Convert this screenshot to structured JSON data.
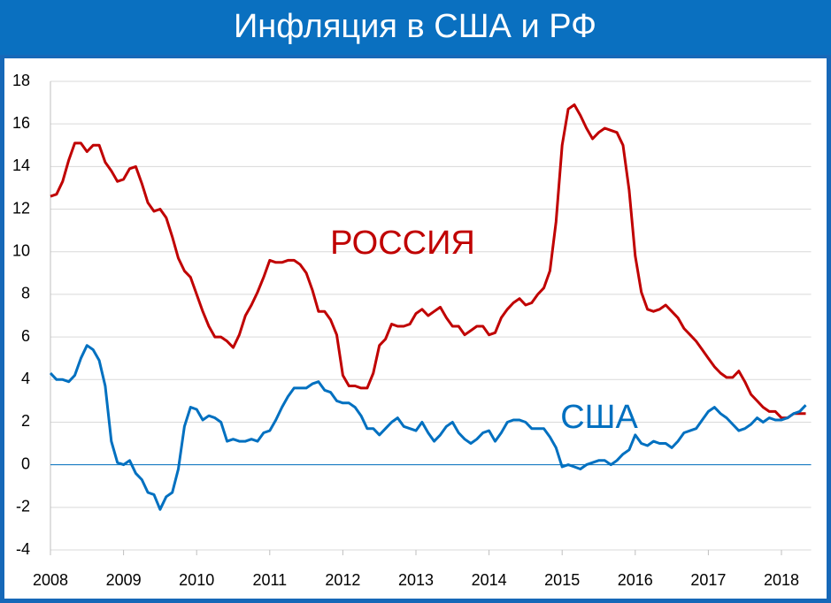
{
  "chart_data": {
    "type": "line",
    "title": "Инфляция в США и РФ",
    "categories": [
      "2008",
      null,
      null,
      null,
      null,
      null,
      null,
      null,
      null,
      null,
      null,
      null,
      "2009",
      null,
      null,
      null,
      null,
      null,
      null,
      null,
      null,
      null,
      null,
      null,
      "2010",
      null,
      null,
      null,
      null,
      null,
      null,
      null,
      null,
      null,
      null,
      null,
      "2011",
      null,
      null,
      null,
      null,
      null,
      null,
      null,
      null,
      null,
      null,
      null,
      "2012",
      null,
      null,
      null,
      null,
      null,
      null,
      null,
      null,
      null,
      null,
      null,
      "2013",
      null,
      null,
      null,
      null,
      null,
      null,
      null,
      null,
      null,
      null,
      null,
      "2014",
      null,
      null,
      null,
      null,
      null,
      null,
      null,
      null,
      null,
      null,
      null,
      "2015",
      null,
      null,
      null,
      null,
      null,
      null,
      null,
      null,
      null,
      null,
      null,
      "2016",
      null,
      null,
      null,
      null,
      null,
      null,
      null,
      null,
      null,
      null,
      null,
      "2017",
      null,
      null,
      null,
      null,
      null,
      null,
      null,
      null,
      null,
      null,
      null,
      "2018",
      null,
      null,
      null,
      null
    ],
    "series": [
      {
        "name": "РОССИЯ",
        "color": "#c00000",
        "values": [
          12.6,
          12.7,
          13.3,
          14.3,
          15.1,
          15.1,
          14.7,
          15.0,
          15.0,
          14.2,
          13.8,
          13.3,
          13.4,
          13.9,
          14.0,
          13.2,
          12.3,
          11.9,
          12.0,
          11.6,
          10.7,
          9.7,
          9.1,
          8.8,
          8.0,
          7.2,
          6.5,
          6.0,
          6.0,
          5.8,
          5.5,
          6.1,
          7.0,
          7.5,
          8.1,
          8.8,
          9.6,
          9.5,
          9.5,
          9.6,
          9.6,
          9.4,
          9.0,
          8.2,
          7.2,
          7.2,
          6.8,
          6.1,
          4.2,
          3.7,
          3.7,
          3.6,
          3.6,
          4.3,
          5.6,
          5.9,
          6.6,
          6.5,
          6.5,
          6.6,
          7.1,
          7.3,
          7.0,
          7.2,
          7.4,
          6.9,
          6.5,
          6.5,
          6.1,
          6.3,
          6.5,
          6.5,
          6.1,
          6.2,
          6.9,
          7.3,
          7.6,
          7.8,
          7.5,
          7.6,
          8.0,
          8.3,
          9.1,
          11.4,
          15.0,
          16.7,
          16.9,
          16.4,
          15.8,
          15.3,
          15.6,
          15.8,
          15.7,
          15.6,
          15.0,
          12.9,
          9.8,
          8.1,
          7.3,
          7.2,
          7.3,
          7.5,
          7.2,
          6.9,
          6.4,
          6.1,
          5.8,
          5.4,
          5.0,
          4.6,
          4.3,
          4.1,
          4.1,
          4.4,
          3.9,
          3.3,
          3.0,
          2.7,
          2.5,
          2.5,
          2.2,
          2.2,
          2.4,
          2.4,
          2.4
        ]
      },
      {
        "name": "США",
        "color": "#0070c0",
        "values": [
          4.3,
          4.0,
          4.0,
          3.9,
          4.2,
          5.0,
          5.6,
          5.4,
          4.9,
          3.7,
          1.1,
          0.1,
          0.0,
          0.2,
          -0.4,
          -0.7,
          -1.3,
          -1.4,
          -2.1,
          -1.5,
          -1.3,
          -0.2,
          1.8,
          2.7,
          2.6,
          2.1,
          2.3,
          2.2,
          2.0,
          1.1,
          1.2,
          1.1,
          1.1,
          1.2,
          1.1,
          1.5,
          1.6,
          2.1,
          2.7,
          3.2,
          3.6,
          3.6,
          3.6,
          3.8,
          3.9,
          3.5,
          3.4,
          3.0,
          2.9,
          2.9,
          2.7,
          2.3,
          1.7,
          1.7,
          1.4,
          1.7,
          2.0,
          2.2,
          1.8,
          1.7,
          1.6,
          2.0,
          1.5,
          1.1,
          1.4,
          1.8,
          2.0,
          1.5,
          1.2,
          1.0,
          1.2,
          1.5,
          1.6,
          1.1,
          1.5,
          2.0,
          2.1,
          2.1,
          2.0,
          1.7,
          1.7,
          1.7,
          1.3,
          0.8,
          -0.1,
          0.0,
          -0.1,
          -0.2,
          0.0,
          0.1,
          0.2,
          0.2,
          0.0,
          0.2,
          0.5,
          0.7,
          1.4,
          1.0,
          0.9,
          1.1,
          1.0,
          1.0,
          0.8,
          1.1,
          1.5,
          1.6,
          1.7,
          2.1,
          2.5,
          2.7,
          2.4,
          2.2,
          1.9,
          1.6,
          1.7,
          1.9,
          2.2,
          2.0,
          2.2,
          2.1,
          2.1,
          2.2,
          2.4,
          2.5,
          2.8
        ]
      }
    ],
    "ylim": [
      -4,
      18
    ],
    "yticks": [
      -4,
      -2,
      0,
      2,
      4,
      6,
      8,
      10,
      12,
      14,
      16,
      18
    ],
    "grid": true
  }
}
